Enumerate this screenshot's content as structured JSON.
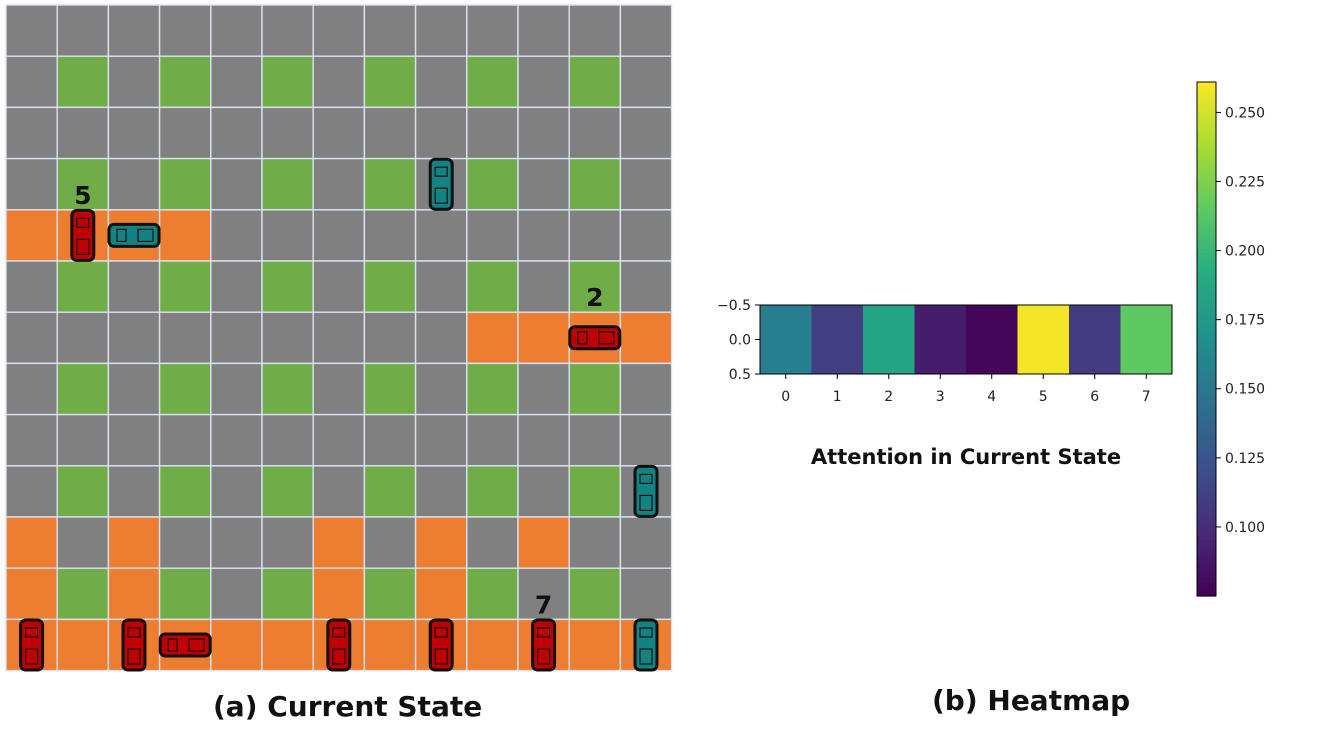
{
  "captions": {
    "state": "(a) Current State",
    "heatmap": "(b) Heatmap"
  },
  "colors": {
    "road": "#808080",
    "block": "#70ad47",
    "congested": "#ed7d31",
    "grid_line": "#d9e2f3",
    "red_car": "#c00000",
    "teal_car": "#138282"
  },
  "grid": {
    "rows": 13,
    "cols": 13,
    "green_rows": [
      1,
      3,
      5,
      7,
      9,
      11
    ],
    "orange_cells": [
      [
        4,
        0
      ],
      [
        4,
        1
      ],
      [
        4,
        2
      ],
      [
        4,
        3
      ],
      [
        6,
        9
      ],
      [
        6,
        10
      ],
      [
        6,
        11
      ],
      [
        6,
        12
      ],
      [
        10,
        0
      ],
      [
        10,
        2
      ],
      [
        10,
        6
      ],
      [
        10,
        8
      ],
      [
        10,
        10
      ],
      [
        11,
        0
      ],
      [
        11,
        2
      ],
      [
        11,
        6
      ],
      [
        11,
        8
      ],
      [
        12,
        0
      ],
      [
        12,
        1
      ],
      [
        12,
        2
      ],
      [
        12,
        3
      ],
      [
        12,
        4
      ],
      [
        12,
        5
      ],
      [
        12,
        6
      ],
      [
        12,
        7
      ],
      [
        12,
        8
      ],
      [
        12,
        9
      ],
      [
        12,
        10
      ],
      [
        12,
        11
      ],
      [
        12,
        12
      ]
    ],
    "cars": [
      {
        "row": 4,
        "col": 1,
        "color": "red",
        "orient": "v",
        "label": "5"
      },
      {
        "row": 4,
        "col": 2,
        "color": "teal",
        "orient": "h",
        "label": ""
      },
      {
        "row": 3,
        "col": 8,
        "color": "teal",
        "orient": "v",
        "label": ""
      },
      {
        "row": 6,
        "col": 11,
        "color": "red",
        "orient": "h",
        "label": "2"
      },
      {
        "row": 9,
        "col": 12,
        "color": "teal",
        "orient": "v",
        "label": ""
      },
      {
        "row": 12,
        "col": 0,
        "color": "red",
        "orient": "v",
        "label": ""
      },
      {
        "row": 12,
        "col": 2,
        "color": "red",
        "orient": "v",
        "label": ""
      },
      {
        "row": 12,
        "col": 3,
        "color": "red",
        "orient": "h",
        "label": ""
      },
      {
        "row": 12,
        "col": 6,
        "color": "red",
        "orient": "v",
        "label": ""
      },
      {
        "row": 12,
        "col": 8,
        "color": "red",
        "orient": "v",
        "label": ""
      },
      {
        "row": 12,
        "col": 10,
        "color": "red",
        "orient": "v",
        "label": "7"
      },
      {
        "row": 12,
        "col": 12,
        "color": "teal",
        "orient": "v",
        "label": ""
      }
    ]
  },
  "chart_data": {
    "type": "heatmap",
    "title": "Attention in Current State",
    "x": [
      0,
      1,
      2,
      3,
      4,
      5,
      6,
      7
    ],
    "values": [
      0.155,
      0.11,
      0.185,
      0.09,
      0.078,
      0.258,
      0.108,
      0.215
    ],
    "x_ticks": [
      "0",
      "1",
      "2",
      "3",
      "4",
      "5",
      "6",
      "7"
    ],
    "y_ticks": [
      "−0.5",
      "0.0",
      "0.5"
    ],
    "colorbar": {
      "vmin": 0.075,
      "vmax": 0.261,
      "ticks": [
        0.1,
        0.125,
        0.15,
        0.175,
        0.2,
        0.225,
        0.25
      ],
      "tick_labels": [
        "0.100",
        "0.125",
        "0.150",
        "0.175",
        "0.200",
        "0.225",
        "0.250"
      ]
    },
    "colormap": "viridis"
  }
}
